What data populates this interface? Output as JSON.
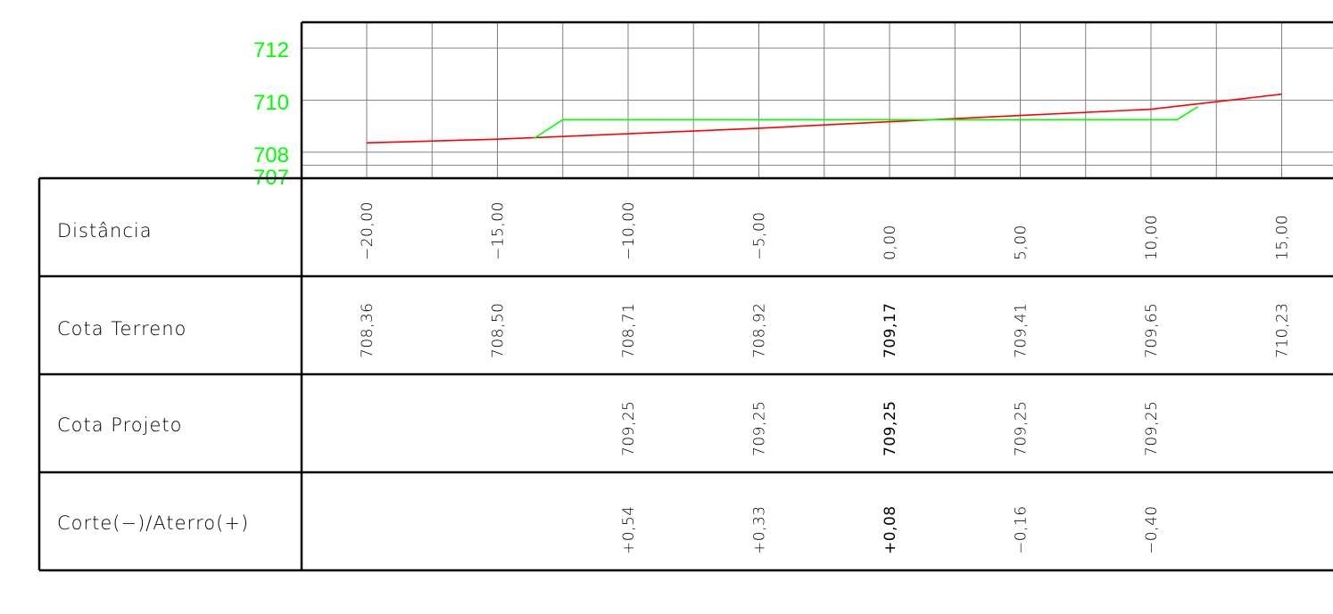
{
  "colors": {
    "axis_labels": "#00ff00",
    "terrain_line": "#ff0000",
    "project_line": "#00ff00",
    "grid": "#808080",
    "frame": "#000000"
  },
  "chart_data": {
    "type": "line",
    "y_tick_labels": [
      "712",
      "710",
      "708",
      "707"
    ],
    "y_range": [
      707,
      713
    ],
    "x_range": [
      -20,
      16.5
    ],
    "grid": true,
    "series": [
      {
        "points": [
          [
            -20,
            708.36
          ],
          [
            -15,
            708.5
          ],
          [
            -10,
            708.71
          ],
          [
            -5,
            708.92
          ],
          [
            0,
            709.17
          ],
          [
            5,
            709.41
          ],
          [
            10,
            709.65
          ],
          [
            15,
            710.23
          ]
        ]
      },
      {
        "points": [
          [
            -13.6,
            708.53
          ],
          [
            -12.5,
            709.25
          ],
          [
            11.0,
            709.25
          ],
          [
            11.8,
            709.75
          ]
        ]
      }
    ]
  },
  "table": {
    "row_labels": [
      "Distância",
      "Cota Terreno",
      "Cota Projeto",
      "Corte(−)/Aterro(+)"
    ],
    "stations": [
      "−20,00",
      "−15,00",
      "−10,00",
      "−5,00",
      "0,00",
      "5,00",
      "10,00",
      "15,00"
    ],
    "station_values": [
      -20,
      -15,
      -10,
      -5,
      0,
      5,
      10,
      15
    ],
    "terrain": [
      "708,36",
      "708,50",
      "708,71",
      "708,92",
      "709,17",
      "709,41",
      "709,65",
      "710,23"
    ],
    "project": [
      "",
      "",
      "709,25",
      "709,25",
      "709,25",
      "709,25",
      "709,25",
      ""
    ],
    "cut_fill": [
      "",
      "",
      "+0,54",
      "+0,33",
      "+0,08",
      "−0,16",
      "−0,40",
      ""
    ]
  }
}
